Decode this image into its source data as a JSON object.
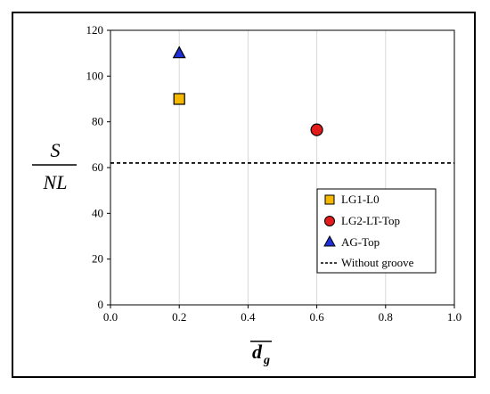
{
  "chart_data": {
    "type": "scatter",
    "xlabel": "d",
    "xlabel_subscript": "g",
    "ylabel_numerator": "S",
    "ylabel_denominator": "NL",
    "xlim": [
      0,
      1
    ],
    "ylim": [
      0,
      120
    ],
    "x_ticks": [
      "0.0",
      "0.2",
      "0.4",
      "0.6",
      "0.8",
      "1.0"
    ],
    "y_ticks": [
      "0",
      "20",
      "40",
      "60",
      "80",
      "100",
      "120"
    ],
    "grid": "vertical",
    "legend_position": "bottom-right",
    "series": [
      {
        "name": "LG1-L0",
        "marker": "square",
        "color": "#F5B800",
        "x": 0.2,
        "y": 90
      },
      {
        "name": "LG2-LT-Top",
        "marker": "circle",
        "color": "#E31B1B",
        "x": 0.6,
        "y": 76.5
      },
      {
        "name": "AG-Top",
        "marker": "triangle",
        "color": "#1E2FD8",
        "x": 0.2,
        "y": 110
      }
    ],
    "reference_line": {
      "name": "Without groove",
      "y": 62
    }
  }
}
